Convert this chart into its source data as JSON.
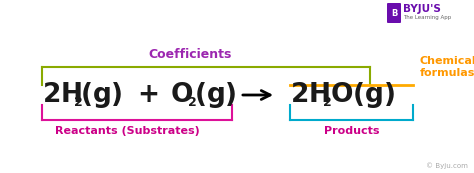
{
  "bg_color": "#ffffff",
  "coefficients_label": "Coefficients",
  "coefficients_color": "#9c27b0",
  "reactants_label": "Reactants (Substrates)",
  "reactants_label_color": "#cc0088",
  "products_label": "Products",
  "products_label_color": "#cc0088",
  "chemical_formulas_label": "Chemical\nformulas",
  "chemical_formulas_color": "#ff9800",
  "bracket_coeff_color": "#8aaa00",
  "bracket_reactants_color": "#dd1199",
  "bracket_products_color": "#00aacc",
  "underline_product_color": "#ffaa00",
  "arrow_color": "#000000",
  "main_text_color": "#1a1a1a",
  "byju_watermark": "© Byju.com",
  "byju_purple": "#6a0dad",
  "byju_text": "BYJU'S",
  "byju_sub": "The Learning App"
}
